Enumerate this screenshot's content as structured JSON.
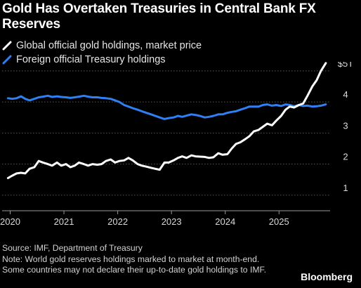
{
  "header": {
    "title": "Gold Has Overtaken Treasuries in Central Bank FX Reserves"
  },
  "footer": {
    "source": "Source: IMF, Department of Treasury",
    "note": "Note: World gold reserves holdings marked to market at month-end. Some countries may not declare their up-to-date gold holdings to IMF."
  },
  "brand": "Bloomberg",
  "colors": {
    "background": "#000000",
    "gold_series": "#ffffff",
    "treasury_series": "#2f7ff5",
    "grid": "#5a5a5a",
    "text": "#d9d9d9"
  },
  "chart_data": {
    "type": "line",
    "title": "Gold Has Overtaken Treasuries in Central Bank FX Reserves",
    "xlabel": "",
    "ylabel": "",
    "xlim": [
      2019.85,
      2025.95
    ],
    "ylim": [
      0.5,
      5.2
    ],
    "x_ticks": [
      2020,
      2021,
      2022,
      2023,
      2024,
      2025
    ],
    "x_tick_labels": [
      "2020",
      "2021",
      "2022",
      "2023",
      "2024",
      "2025"
    ],
    "y_ticks": [
      1,
      2,
      3,
      4,
      5
    ],
    "y_tick_labels": [
      "1",
      "2",
      "3",
      "4",
      "$5T"
    ],
    "grid": "horizontal dotted",
    "legend_position": "top-left",
    "series": [
      {
        "name": "Global official gold holdings, market price",
        "color": "#ffffff",
        "x": [
          2019.96,
          2020.04,
          2020.12,
          2020.2,
          2020.28,
          2020.36,
          2020.45,
          2020.53,
          2020.61,
          2020.7,
          2020.78,
          2020.87,
          2020.95,
          2021.04,
          2021.12,
          2021.2,
          2021.28,
          2021.37,
          2021.45,
          2021.53,
          2021.62,
          2021.7,
          2021.78,
          2021.87,
          2021.95,
          2022.03,
          2022.12,
          2022.2,
          2022.28,
          2022.37,
          2022.45,
          2022.53,
          2022.62,
          2022.7,
          2022.78,
          2022.87,
          2022.95,
          2023.04,
          2023.12,
          2023.2,
          2023.28,
          2023.37,
          2023.45,
          2023.53,
          2023.62,
          2023.7,
          2023.78,
          2023.87,
          2023.95,
          2024.04,
          2024.12,
          2024.2,
          2024.28,
          2024.37,
          2024.45,
          2024.53,
          2024.62,
          2024.7,
          2024.78,
          2024.87,
          2024.95,
          2025.04,
          2025.12,
          2025.2,
          2025.28,
          2025.37,
          2025.45,
          2025.53,
          2025.62,
          2025.7,
          2025.78,
          2025.87
        ],
        "values": [
          1.55,
          1.63,
          1.7,
          1.72,
          1.7,
          1.85,
          1.9,
          2.1,
          2.05,
          2.0,
          1.95,
          2.05,
          1.95,
          2.0,
          1.9,
          1.95,
          2.05,
          2.0,
          1.95,
          2.0,
          1.98,
          2.0,
          2.1,
          2.15,
          2.05,
          2.1,
          2.12,
          2.2,
          2.12,
          2.0,
          1.95,
          1.92,
          1.88,
          1.85,
          1.82,
          2.05,
          2.05,
          2.12,
          2.2,
          2.25,
          2.2,
          2.28,
          2.25,
          2.24,
          2.23,
          2.2,
          2.22,
          2.35,
          2.3,
          2.32,
          2.5,
          2.65,
          2.7,
          2.8,
          2.9,
          3.05,
          3.1,
          3.2,
          3.3,
          3.25,
          3.4,
          3.55,
          3.75,
          3.85,
          3.82,
          3.9,
          3.95,
          4.2,
          4.5,
          4.7,
          5.0,
          5.25
        ]
      },
      {
        "name": "Foreign official Treasury holdings",
        "color": "#2f7ff5",
        "x": [
          2019.96,
          2020.04,
          2020.12,
          2020.2,
          2020.28,
          2020.36,
          2020.45,
          2020.53,
          2020.61,
          2020.7,
          2020.78,
          2020.87,
          2020.95,
          2021.04,
          2021.12,
          2021.2,
          2021.28,
          2021.37,
          2021.45,
          2021.53,
          2021.62,
          2021.7,
          2021.78,
          2021.87,
          2021.95,
          2022.03,
          2022.12,
          2022.2,
          2022.28,
          2022.37,
          2022.45,
          2022.53,
          2022.62,
          2022.7,
          2022.78,
          2022.87,
          2022.95,
          2023.04,
          2023.12,
          2023.2,
          2023.28,
          2023.37,
          2023.45,
          2023.53,
          2023.62,
          2023.7,
          2023.78,
          2023.87,
          2023.95,
          2024.04,
          2024.12,
          2024.2,
          2024.28,
          2024.37,
          2024.45,
          2024.53,
          2024.62,
          2024.7,
          2024.78,
          2024.87,
          2024.95,
          2025.04,
          2025.12,
          2025.2,
          2025.28,
          2025.37,
          2025.45,
          2025.53,
          2025.62,
          2025.7,
          2025.78,
          2025.87
        ],
        "values": [
          4.12,
          4.1,
          4.12,
          4.18,
          4.1,
          4.05,
          4.1,
          4.15,
          4.17,
          4.2,
          4.16,
          4.18,
          4.16,
          4.15,
          4.13,
          4.15,
          4.17,
          4.2,
          4.17,
          4.15,
          4.15,
          4.13,
          4.12,
          4.1,
          4.05,
          4.0,
          3.9,
          3.85,
          3.8,
          3.75,
          3.7,
          3.65,
          3.6,
          3.55,
          3.5,
          3.45,
          3.48,
          3.5,
          3.55,
          3.52,
          3.56,
          3.6,
          3.58,
          3.55,
          3.5,
          3.52,
          3.55,
          3.6,
          3.6,
          3.65,
          3.68,
          3.7,
          3.75,
          3.8,
          3.85,
          3.85,
          3.85,
          3.9,
          3.92,
          3.88,
          3.9,
          3.87,
          3.92,
          3.9,
          3.86,
          3.9,
          3.87,
          3.88,
          3.85,
          3.86,
          3.88,
          3.92
        ]
      }
    ]
  }
}
